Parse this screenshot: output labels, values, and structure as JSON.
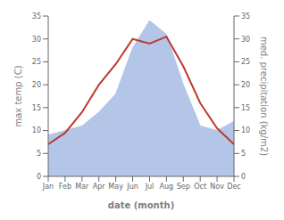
{
  "chart_data": {
    "type": "line",
    "xlabel": "date (month)",
    "ylabel": "max temp (C)",
    "y2label": "med. precipitation (kg/m2)",
    "categories": [
      "Jan",
      "Feb",
      "Mar",
      "Apr",
      "May",
      "Jun",
      "Jul",
      "Aug",
      "Sep",
      "Oct",
      "Nov",
      "Dec"
    ],
    "series": [
      {
        "type": "area",
        "axis": "y2",
        "color": "#b3c6e8",
        "values": [
          9,
          10,
          11,
          14,
          18,
          28,
          34,
          31,
          20,
          11,
          10,
          12
        ]
      },
      {
        "type": "line",
        "color": "#c0392b",
        "values": [
          7,
          9.5,
          14,
          20,
          24.5,
          30,
          29,
          30.5,
          24,
          16,
          10.5,
          7
        ]
      }
    ],
    "ylim": [
      0,
      35
    ],
    "yticks": [
      0,
      5,
      10,
      15,
      20,
      25,
      30,
      35
    ],
    "y2lim": [
      0,
      35
    ],
    "y2ticks": [
      0,
      5,
      10,
      15,
      20,
      25,
      30,
      35
    ],
    "grid": false
  }
}
